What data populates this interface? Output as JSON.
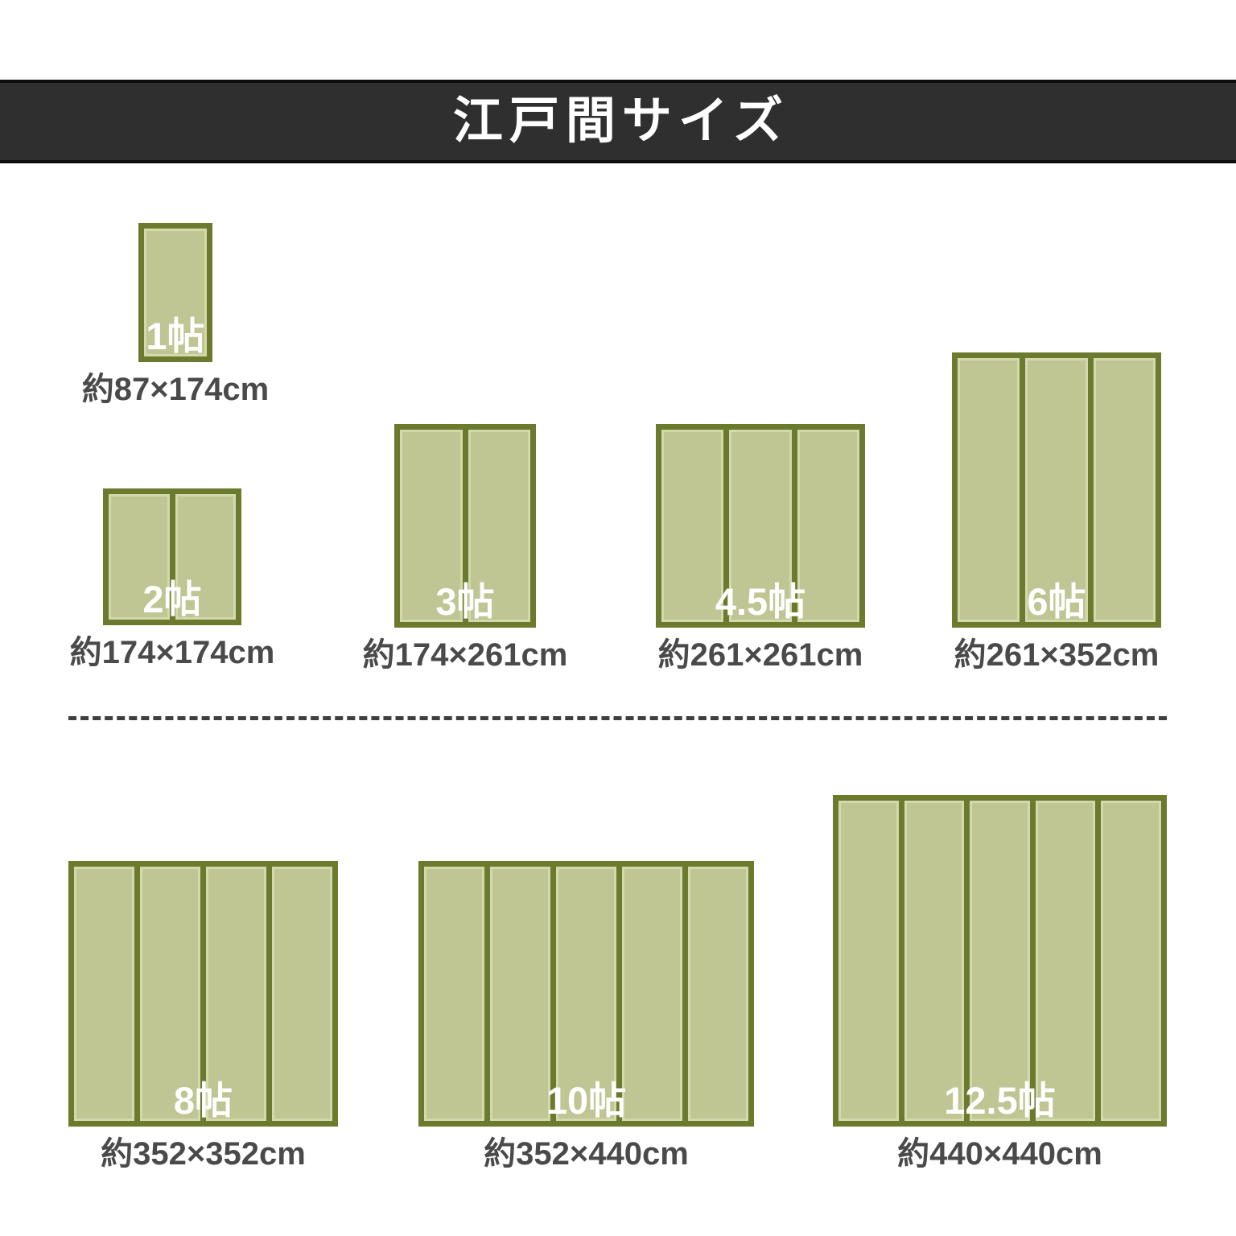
{
  "title": "江戸間サイズ",
  "colors": {
    "page_bg": "#ffffff",
    "header_bg": "#2f2f2f",
    "header_edge": "#0d0d0d",
    "title_text": "#ffffff",
    "mat_border": "#6b7a2d",
    "mat_fill": "#bfc593",
    "mat_fill_edge": "#d3d8ad",
    "label_text": "#ffffff",
    "dimension_text": "#4a4a4a",
    "divider_dashed": "#3f3f3f"
  },
  "mats": [
    {
      "label": "1帖",
      "dimension": "約87×174cm",
      "panels": 1
    },
    {
      "label": "2帖",
      "dimension": "約174×174cm",
      "panels": 2
    },
    {
      "label": "3帖",
      "dimension": "約174×261cm",
      "panels": 2
    },
    {
      "label": "4.5帖",
      "dimension": "約261×261cm",
      "panels": 3
    },
    {
      "label": "6帖",
      "dimension": "約261×352cm",
      "panels": 3
    },
    {
      "label": "8帖",
      "dimension": "約352×352cm",
      "panels": 4
    },
    {
      "label": "10帖",
      "dimension": "約352×440cm",
      "panels": 5
    },
    {
      "label": "12.5帖",
      "dimension": "約440×440cm",
      "panels": 5
    }
  ]
}
